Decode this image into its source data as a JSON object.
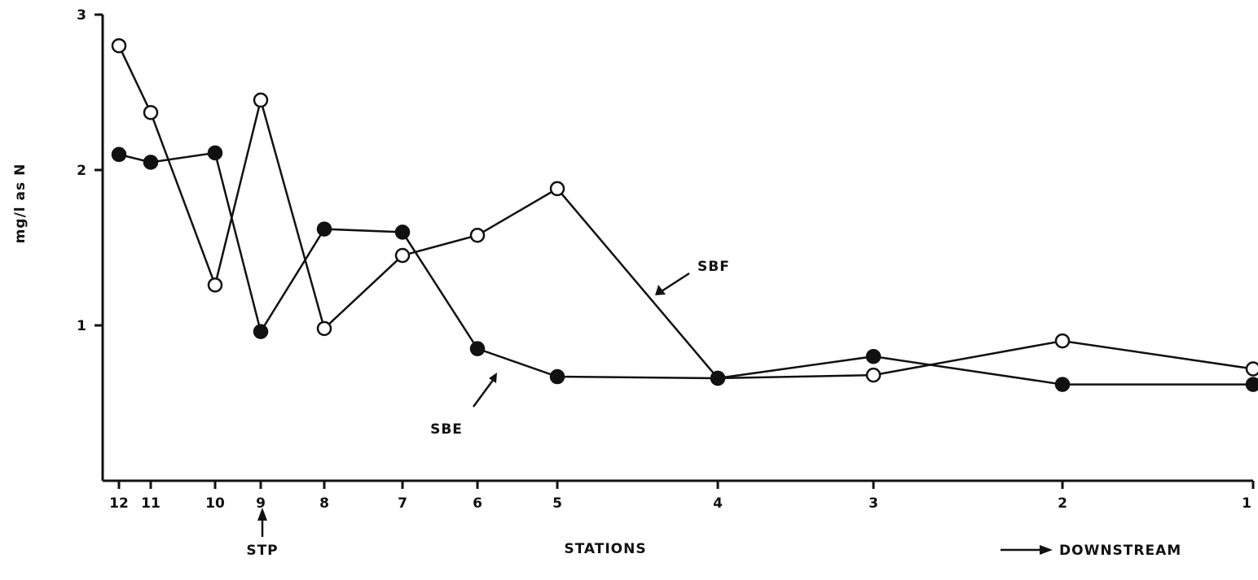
{
  "chart_data": {
    "type": "line",
    "title": "",
    "xlabel": "STATIONS",
    "ylabel": "mg/l as N",
    "ylim": [
      0,
      3
    ],
    "yticks": [
      1,
      2,
      3
    ],
    "x_order": "12 (upstream, left) to 1 (downstream, right)",
    "categories": [
      "12",
      "11",
      "10",
      "9",
      "8",
      "7",
      "6",
      "5",
      "4",
      "3",
      "2",
      "1"
    ],
    "series": [
      {
        "name": "SBF",
        "marker": "open-circle",
        "values": [
          2.8,
          2.37,
          1.26,
          2.45,
          0.98,
          1.45,
          1.58,
          1.88,
          0.66,
          0.68,
          0.9,
          0.72
        ]
      },
      {
        "name": "SBE",
        "marker": "filled-circle",
        "values": [
          2.1,
          2.05,
          2.11,
          0.96,
          1.62,
          1.6,
          0.85,
          0.67,
          0.66,
          0.8,
          0.62,
          0.62
        ]
      }
    ],
    "annotations": {
      "stp_label": "STP",
      "stp_station": "9",
      "downstream_label": "DOWNSTREAM"
    },
    "grid": false,
    "legend": "direct labels with arrows"
  }
}
